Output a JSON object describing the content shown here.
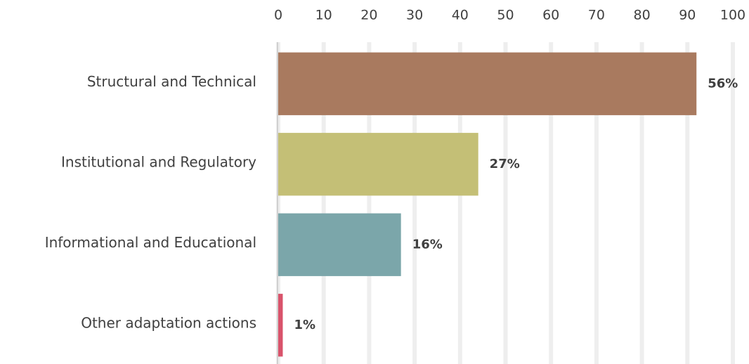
{
  "chart_data": {
    "type": "barh",
    "categories": [
      "Structural and Technical",
      "Institutional and Regulatory",
      "Informational and Educational",
      "Other adaptation actions"
    ],
    "values": [
      92,
      44,
      27,
      1
    ],
    "share_labels": [
      "56%",
      "27%",
      "16%",
      "1%"
    ],
    "colors": [
      "#a97a5f",
      "#c4bf76",
      "#7ba6aa",
      "#d9536b"
    ],
    "xlim": [
      0,
      100
    ],
    "xticks": [
      0,
      10,
      20,
      30,
      40,
      50,
      60,
      70,
      80,
      90,
      100
    ],
    "grid": true
  }
}
